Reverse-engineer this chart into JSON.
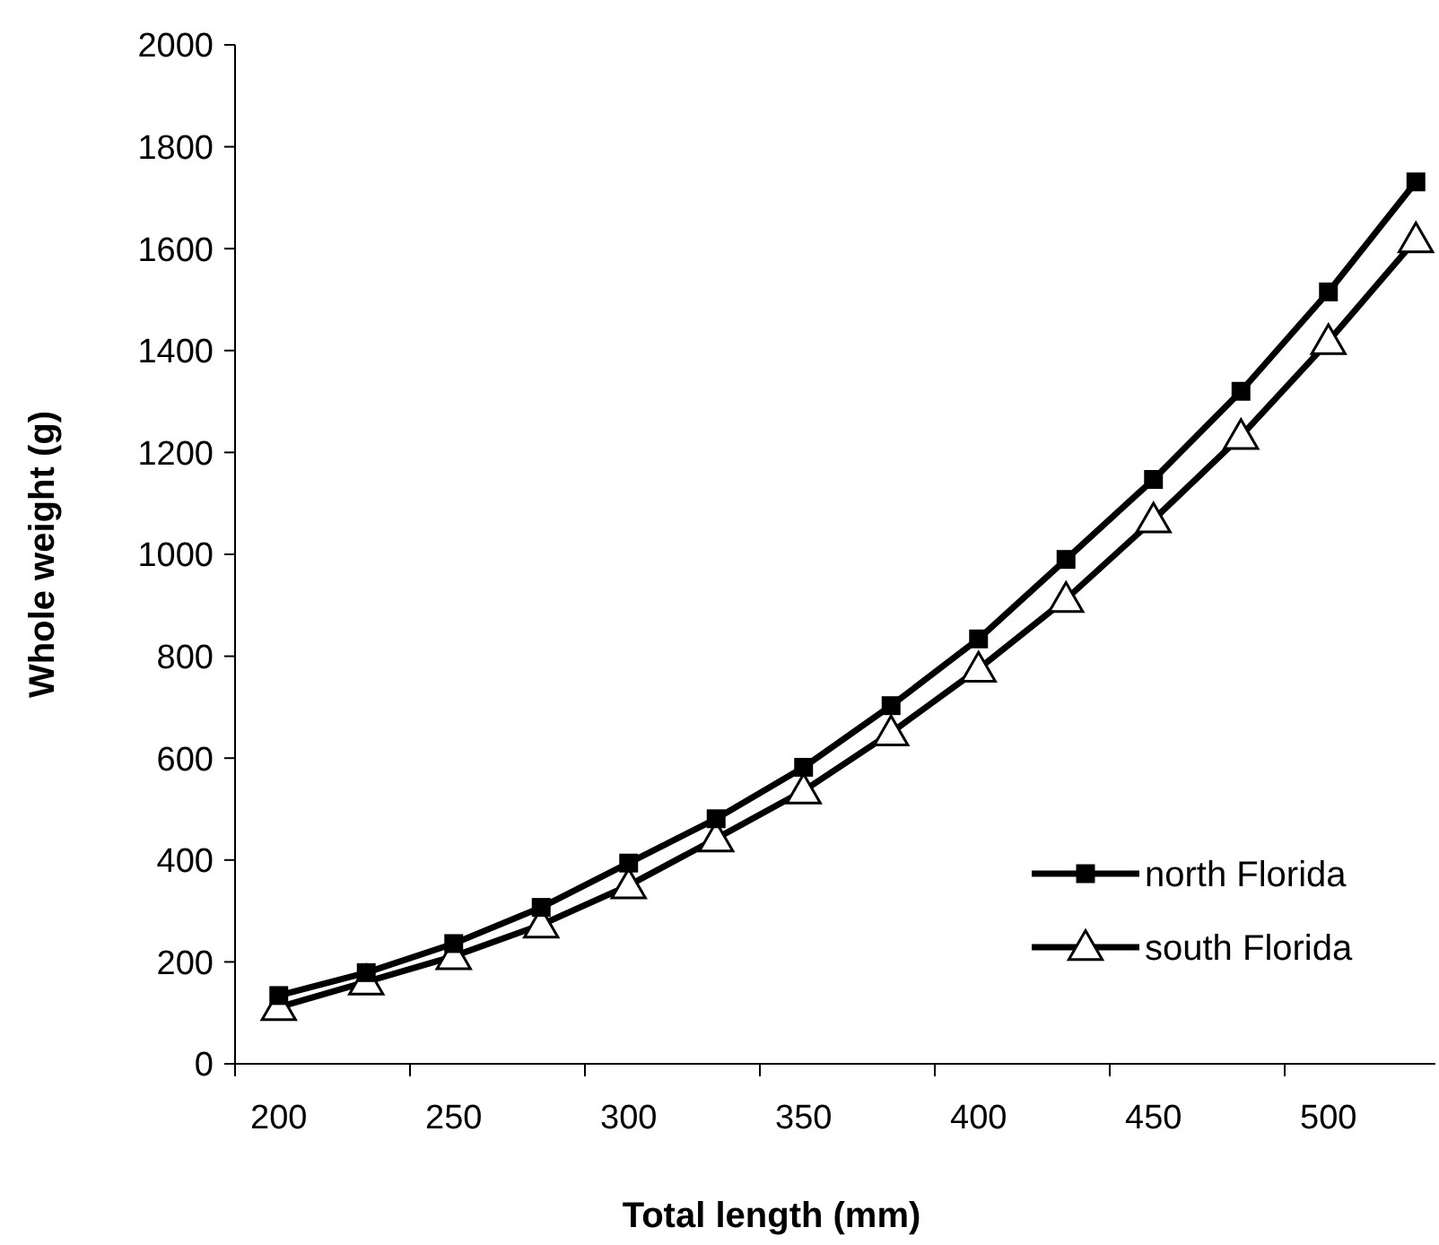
{
  "chart_data": {
    "type": "line",
    "xlabel": "Total length (mm)",
    "ylabel": "Whole weight (g)",
    "categories": [
      "200",
      null,
      "250",
      null,
      "300",
      null,
      "350",
      null,
      "400",
      null,
      "450",
      null,
      "500",
      null
    ],
    "ylim": [
      0,
      2000
    ],
    "yticks": [
      0,
      200,
      400,
      600,
      800,
      1000,
      1200,
      1400,
      1600,
      1800,
      2000
    ],
    "grid": false,
    "legend": "right",
    "series": [
      {
        "name": "north Florida",
        "color": "#000000",
        "marker": "square",
        "values": [
          134,
          179,
          236,
          307,
          394,
          481,
          582,
          703,
          834,
          990,
          1147,
          1320,
          1515,
          1731
        ]
      },
      {
        "name": "south Florida",
        "color": "#000000",
        "marker": "triangle",
        "values": [
          111,
          161,
          211,
          273,
          350,
          442,
          536,
          650,
          775,
          912,
          1068,
          1232,
          1418,
          1618
        ]
      }
    ]
  }
}
